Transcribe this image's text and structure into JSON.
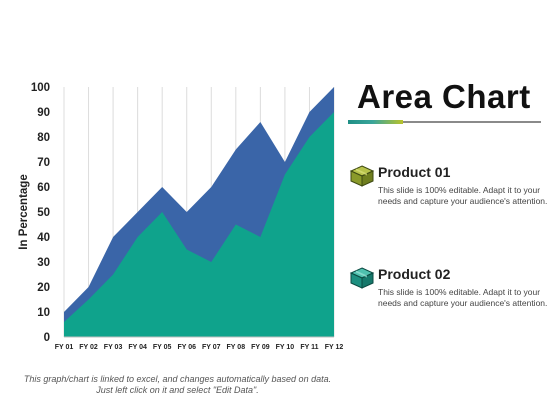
{
  "chart_data": {
    "type": "area",
    "title": "",
    "xlabel": "",
    "ylabel": "In Percentage",
    "categories": [
      "FY 01",
      "FY 02",
      "FY 03",
      "FY 04",
      "FY 05",
      "FY 06",
      "FY 07",
      "FY 08",
      "FY 09",
      "FY 10",
      "FY 11",
      "FY 12"
    ],
    "ylim": [
      0,
      100
    ],
    "yticks": [
      0,
      10,
      20,
      30,
      40,
      50,
      60,
      70,
      80,
      90,
      100
    ],
    "grid": "vertical",
    "series": [
      {
        "name": "Product 01",
        "color": "#3a65a8",
        "values": [
          10,
          20,
          40,
          50,
          60,
          50,
          60,
          75,
          86,
          70,
          90,
          100
        ]
      },
      {
        "name": "Product 02",
        "color": "#0fa38c",
        "values": [
          6,
          15,
          25,
          40,
          50,
          35,
          30,
          45,
          40,
          65,
          80,
          90
        ]
      }
    ]
  },
  "heading": {
    "title": "Area Chart"
  },
  "legend": [
    {
      "name": "Product 01",
      "desc": "This slide is 100% editable. Adapt it to your needs and capture your audience's attention.",
      "color": "#8a9a2a",
      "icon": "box-icon"
    },
    {
      "name": "Product 02",
      "desc": "This slide is 100% editable. Adapt it to your needs and capture your audience's attention.",
      "color": "#1d8f80",
      "icon": "box-icon"
    }
  ],
  "footer": {
    "note": "This graph/chart is linked to excel, and changes automatically based on data. Just left click on it and select \"Edit Data\"."
  }
}
